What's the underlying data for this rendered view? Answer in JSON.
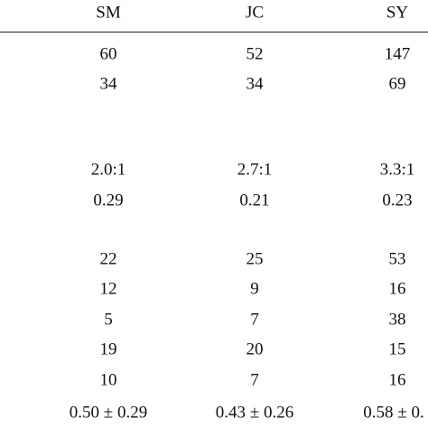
{
  "table": {
    "header": [
      "SM",
      "JC",
      "SY"
    ],
    "groups": [
      [
        [
          "60",
          "52",
          "147"
        ],
        [
          "34",
          "34",
          "69"
        ]
      ],
      [
        [
          "2.0:1",
          "2.7:1",
          "3.3:1"
        ],
        [
          "0.29",
          "0.21",
          "0.23"
        ]
      ],
      [
        [
          "22",
          "25",
          "53"
        ],
        [
          "12",
          "9",
          "16"
        ],
        [
          "5",
          "7",
          "38"
        ],
        [
          "19",
          "20",
          "15"
        ],
        [
          "10",
          "7",
          "16"
        ],
        [
          "0.50 ± 0.29",
          "0.43 ± 0.26",
          "0.58 ± 0."
        ]
      ]
    ]
  }
}
